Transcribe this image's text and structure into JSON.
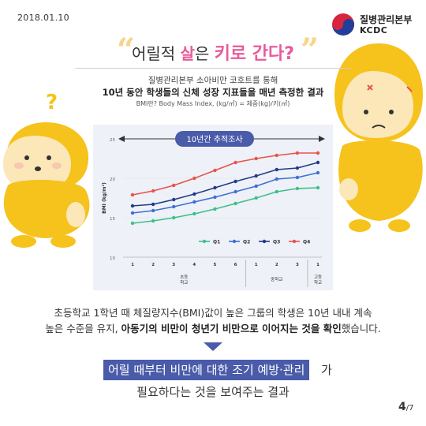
{
  "date": "2018.01.10",
  "logo": {
    "name_ko": "질병관리본부",
    "name_en": "KCDC"
  },
  "headline": {
    "part1": "어릴적 ",
    "part2": "살",
    "part3": "은 ",
    "part4": "키로 간다?"
  },
  "subtitle": {
    "line1": "질병관리본부 소아비만 코호트를 통해",
    "line2": "10년 동안 학생들의 신체 성장 지표들을 매년 측정한 결과",
    "line3": "BMI란? Body Mass Index, (kg/㎡) = 체중(kg)/키(㎡)"
  },
  "chart_data": {
    "type": "line",
    "title": "10년간 추적조사",
    "ylabel": "BMI (kg/m²)",
    "ylim": [
      10,
      25
    ],
    "yticks": [
      10,
      15,
      20,
      25
    ],
    "x": [
      1,
      2,
      3,
      4,
      5,
      6,
      7,
      8,
      9,
      10
    ],
    "x_tick_labels": [
      "1",
      "2",
      "3",
      "4",
      "5",
      "6",
      "1",
      "2",
      "3",
      "1"
    ],
    "x_groups": [
      {
        "label": "초등학교",
        "from": 1,
        "to": 6
      },
      {
        "label": "중학교",
        "from": 7,
        "to": 9
      },
      {
        "label": "고등학교",
        "from": 10,
        "to": 10
      }
    ],
    "legend_position": "bottom",
    "series": [
      {
        "name": "Q1",
        "color": "#3dbf8a",
        "values": [
          14.3,
          14.6,
          15.0,
          15.5,
          16.1,
          16.8,
          17.5,
          18.3,
          18.7,
          18.8
        ]
      },
      {
        "name": "Q2",
        "color": "#3d6fd6",
        "values": [
          15.6,
          15.9,
          16.4,
          17.0,
          17.6,
          18.3,
          19.0,
          19.9,
          20.1,
          20.7
        ]
      },
      {
        "name": "Q3",
        "color": "#233a86",
        "values": [
          16.5,
          16.7,
          17.3,
          18.0,
          18.8,
          19.6,
          20.3,
          21.1,
          21.3,
          22.0
        ]
      },
      {
        "name": "Q4",
        "color": "#e8524a",
        "values": [
          17.9,
          18.4,
          19.1,
          20.0,
          21.0,
          22.0,
          22.5,
          22.9,
          23.2,
          23.2
        ]
      }
    ]
  },
  "desc": {
    "line1": "초등학교 1학년 때 체질량지수(BMI)값이 높은 그룹의 학생은 10년 내내 계속",
    "line2_a": "높은 수준을 유지, ",
    "line2_b": "아동기의 비만이 청년기 비만으로 이어지는 것을 확인",
    "line2_c": "했습니다."
  },
  "conclusion": {
    "highlight": "어릴 때부터 비만에 대한 조기 예방·관리",
    "rest1": "가",
    "line2": "필요하다는 것을 보여주는 결과"
  },
  "page": {
    "current": "4",
    "total": "/7"
  },
  "colors": {
    "accent": "#4a5ba9",
    "character": "#f6c21c",
    "headline_emphasis": "#e95a9a"
  }
}
